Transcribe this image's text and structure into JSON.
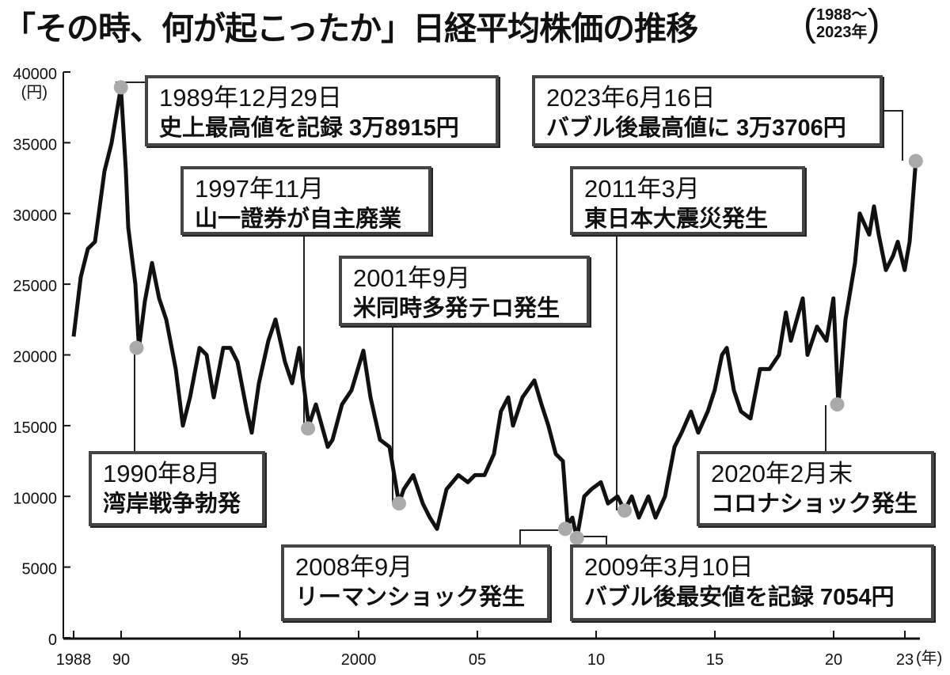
{
  "title": "「その時、何が起こったか」日経平均株価の推移",
  "subtitle": {
    "open": "(",
    "line1": "1988～",
    "line2": "2023年",
    "close": ")"
  },
  "chart_data": {
    "type": "line",
    "title": "「その時、何が起こったか」日経平均株価の推移",
    "xlabel": "(年)",
    "ylabel": "(円)",
    "xlim": [
      1988,
      2023.5
    ],
    "ylim": [
      0,
      40000
    ],
    "grid": false,
    "line_color": "#111111",
    "marker_color": "#aaaaaa",
    "x_ticks": [
      {
        "value": 1988,
        "label": "1988"
      },
      {
        "value": 1990,
        "label": "90"
      },
      {
        "value": 1995,
        "label": "95"
      },
      {
        "value": 2000,
        "label": "2000"
      },
      {
        "value": 2005,
        "label": "05"
      },
      {
        "value": 2010,
        "label": "10"
      },
      {
        "value": 2015,
        "label": "15"
      },
      {
        "value": 2020,
        "label": "20"
      },
      {
        "value": 2023,
        "label": "23"
      }
    ],
    "y_ticks": [
      0,
      5000,
      10000,
      15000,
      20000,
      25000,
      30000,
      35000,
      40000
    ],
    "series": [
      {
        "x": [
          1988.0,
          1988.3,
          1988.6,
          1988.9,
          1989.3,
          1989.6,
          1989.99,
          1990.2,
          1990.3,
          1990.6,
          1990.75,
          1991.0,
          1991.3,
          1991.6,
          1991.9,
          1992.3,
          1992.6,
          1992.9,
          1993.3,
          1993.6,
          1993.9,
          1994.3,
          1994.6,
          1994.9,
          1995.3,
          1995.5,
          1995.8,
          1996.2,
          1996.5,
          1996.9,
          1997.2,
          1997.5,
          1997.9,
          1998.2,
          1998.7,
          1998.9,
          1999.3,
          1999.7,
          2000.2,
          2000.5,
          2000.9,
          2001.3,
          2001.7,
          2001.9,
          2002.3,
          2002.7,
          2003.0,
          2003.3,
          2003.7,
          2004.2,
          2004.6,
          2004.9,
          2005.3,
          2005.7,
          2005.99,
          2006.3,
          2006.5,
          2006.9,
          2007.4,
          2007.7,
          2007.99,
          2008.3,
          2008.6,
          2008.8,
          2009.0,
          2009.19,
          2009.5,
          2009.8,
          2010.2,
          2010.5,
          2010.9,
          2011.2,
          2011.5,
          2011.8,
          2012.2,
          2012.5,
          2012.9,
          2013.3,
          2013.6,
          2013.99,
          2014.3,
          2014.7,
          2014.99,
          2015.3,
          2015.5,
          2015.8,
          2016.1,
          2016.5,
          2016.9,
          2017.3,
          2017.7,
          2017.99,
          2018.2,
          2018.7,
          2018.9,
          2019.3,
          2019.7,
          2019.99,
          2020.2,
          2020.5,
          2020.9,
          2021.1,
          2021.5,
          2021.7,
          2021.9,
          2022.2,
          2022.5,
          2022.7,
          2022.99,
          2023.2,
          2023.46
        ],
        "y": [
          21300,
          25500,
          27500,
          28000,
          33000,
          35000,
          38915,
          33000,
          29000,
          25000,
          20500,
          23800,
          26500,
          24000,
          22500,
          19000,
          15000,
          17000,
          20500,
          20000,
          17000,
          20500,
          20500,
          19500,
          16000,
          14500,
          18000,
          21000,
          22500,
          19500,
          18000,
          20500,
          15000,
          16500,
          13500,
          14000,
          16500,
          17500,
          20300,
          17000,
          14000,
          13500,
          9500,
          10500,
          11500,
          9500,
          8500,
          7700,
          10500,
          11500,
          11000,
          11500,
          11500,
          13000,
          16000,
          17000,
          15000,
          17000,
          18200,
          16500,
          15000,
          13000,
          12500,
          8000,
          8500,
          7054,
          10000,
          10500,
          11000,
          9500,
          10000,
          9000,
          10000,
          8500,
          10000,
          8500,
          10000,
          13500,
          14500,
          16000,
          14500,
          16000,
          17500,
          20000,
          20500,
          17500,
          16000,
          15500,
          19000,
          19000,
          20000,
          23000,
          21000,
          24000,
          20000,
          22000,
          21000,
          24000,
          16500,
          22500,
          26500,
          30000,
          28500,
          30500,
          28500,
          26000,
          27000,
          28000,
          26000,
          28000,
          33706
        ]
      }
    ],
    "annotations": [
      {
        "x": 1989.99,
        "y": 38915,
        "date": "1989年12月29日",
        "text": "史上最高値を記録 3万8915円"
      },
      {
        "x": 1990.65,
        "y": 20500,
        "date": "1990年8月",
        "text": "湾岸戦争勃発"
      },
      {
        "x": 1997.87,
        "y": 14800,
        "date": "1997年11月",
        "text": "山一證券が自主廃業"
      },
      {
        "x": 2001.7,
        "y": 9500,
        "date": "2001年9月",
        "text": "米同時多発テロ発生"
      },
      {
        "x": 2008.7,
        "y": 7700,
        "date": "2008年9月",
        "text": "リーマンショック発生"
      },
      {
        "x": 2009.19,
        "y": 7054,
        "date": "2009年3月10日",
        "text": "バブル後最安値を記録 7054円"
      },
      {
        "x": 2011.2,
        "y": 9000,
        "date": "2011年3月",
        "text": "東日本大震災発生"
      },
      {
        "x": 2020.15,
        "y": 16500,
        "date": "2020年2月末",
        "text": "コロナショック発生"
      },
      {
        "x": 2023.46,
        "y": 33706,
        "date": "2023年6月16日",
        "text": "バブル後最高値に 3万3706円"
      }
    ]
  }
}
